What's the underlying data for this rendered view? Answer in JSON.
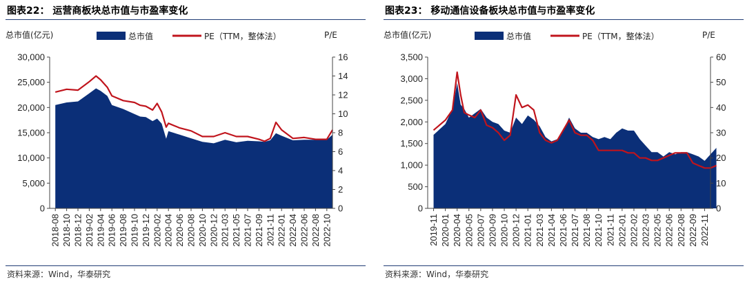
{
  "chart_data": [
    {
      "type": "area",
      "title": "图表22： 运营商板块总市值与市盈率变化",
      "source": "资料来源：Wind，华泰研究",
      "ylabel_left": "总市值(亿元)",
      "ylabel_right": "P/E",
      "ylim_left": [
        0,
        30000
      ],
      "yticks_left": [
        "0",
        "5,000",
        "10,000",
        "15,000",
        "20,000",
        "25,000",
        "30,000"
      ],
      "ylim_right": [
        0,
        16
      ],
      "yticks_right": [
        "0",
        "2",
        "4",
        "6",
        "8",
        "10",
        "12",
        "14",
        "16"
      ],
      "x_labels": [
        "2018-08",
        "2018-10",
        "2018-12",
        "2019-02",
        "2019-04",
        "2019-06",
        "2019-08",
        "2019-10",
        "2019-12",
        "2020-02",
        "2020-04",
        "2020-06",
        "2020-08",
        "2020-10",
        "2020-12",
        "2021-03",
        "2021-05",
        "2021-07",
        "2021-09",
        "2021-11",
        "2022-01",
        "2022-04",
        "2022-06",
        "2022-08",
        "2022-10"
      ],
      "legend": {
        "bar": "总市值",
        "line": "PE（TTM，整体法）"
      },
      "colors": {
        "area": "#0b2f78",
        "line": "#c0141c"
      },
      "series": [
        {
          "name": "总市值",
          "kind": "area",
          "axis": "left",
          "x": [
            0,
            1,
            2,
            3,
            3.6,
            4,
            4.6,
            5,
            6,
            7,
            7.5,
            8,
            8.6,
            9,
            9.4,
            9.8,
            10,
            11,
            12,
            13,
            14,
            15,
            16,
            17,
            18,
            18.5,
            19,
            19.5,
            20,
            21,
            22,
            23,
            24,
            24.5
          ],
          "values": [
            20500,
            21000,
            21200,
            22800,
            23800,
            23300,
            22300,
            20500,
            19700,
            18700,
            18200,
            18100,
            17300,
            17800,
            16800,
            13800,
            15300,
            14600,
            13900,
            13200,
            12900,
            13600,
            13100,
            13400,
            13300,
            13200,
            13500,
            14900,
            14400,
            13500,
            13600,
            13600,
            13600,
            14600
          ]
        },
        {
          "name": "PE（TTM，整体法）",
          "kind": "line",
          "axis": "right",
          "x": [
            0,
            1,
            2,
            3,
            3.6,
            4,
            4.6,
            5,
            6,
            7,
            7.5,
            8,
            8.6,
            9,
            9.4,
            9.8,
            10,
            11,
            12,
            13,
            14,
            15,
            16,
            17,
            18,
            18.5,
            19,
            19.5,
            20,
            21,
            22,
            23,
            24,
            24.5
          ],
          "values": [
            12.3,
            12.6,
            12.5,
            13.4,
            14.0,
            13.6,
            12.8,
            11.9,
            11.4,
            11.2,
            10.9,
            10.8,
            10.4,
            11.1,
            10.2,
            8.6,
            9.0,
            8.5,
            8.2,
            7.6,
            7.6,
            8.0,
            7.6,
            7.6,
            7.3,
            7.1,
            7.4,
            9.1,
            8.3,
            7.4,
            7.5,
            7.3,
            7.3,
            8.3
          ]
        }
      ]
    },
    {
      "type": "area",
      "title": "图表23： 移动通信设备板块总市值与市盈率变化",
      "source": "资料来源：Wind，华泰研究",
      "ylabel_left": "总市值(亿元)",
      "ylabel_right": "P/E",
      "ylim_left": [
        0,
        3500
      ],
      "yticks_left": [
        "0",
        "500",
        "1,000",
        "1,500",
        "2,000",
        "2,500",
        "3,000",
        "3,500"
      ],
      "ylim_right": [
        0,
        60
      ],
      "yticks_right": [
        "0",
        "10",
        "20",
        "30",
        "40",
        "50",
        "60"
      ],
      "x_labels": [
        "2019-11",
        "2020-01",
        "2020-04",
        "2020-05",
        "2020-07",
        "2020-09",
        "2020-10",
        "2020-12",
        "2021-01",
        "2021-03",
        "2021-04",
        "2021-06",
        "2021-07",
        "2021-08",
        "2021-10",
        "2021-11",
        "2022-01",
        "2022-02",
        "2022-03",
        "2022-05",
        "2022-06",
        "2022-08",
        "2022-09",
        "2022-11"
      ],
      "legend": {
        "bar": "总市值",
        "line": "PE（TTM，整体法）"
      },
      "colors": {
        "area": "#0b2f78",
        "line": "#c0141c"
      },
      "series": [
        {
          "name": "总市值",
          "kind": "area",
          "axis": "left",
          "x": [
            0,
            1,
            1.6,
            2,
            2.3,
            2.6,
            3,
            3.5,
            4,
            4.5,
            5,
            5.5,
            6,
            6.5,
            7,
            7.5,
            8,
            8.5,
            9,
            9.5,
            10,
            10.5,
            11,
            11.5,
            12,
            12.5,
            13,
            13.5,
            14,
            14.5,
            15,
            15.5,
            16,
            16.5,
            17,
            17.5,
            18,
            18.5,
            19,
            19.5,
            20,
            20.5,
            21,
            21.5,
            22,
            22.5,
            23,
            23.5,
            24
          ],
          "values": [
            1700,
            1950,
            2300,
            2900,
            2400,
            2300,
            2100,
            2200,
            2300,
            2100,
            2000,
            1950,
            1800,
            1750,
            2100,
            1950,
            2150,
            2050,
            1900,
            1650,
            1550,
            1600,
            1800,
            2100,
            1850,
            1750,
            1750,
            1650,
            1600,
            1650,
            1600,
            1750,
            1850,
            1800,
            1800,
            1600,
            1450,
            1300,
            1300,
            1200,
            1300,
            1250,
            1300,
            1300,
            1250,
            1200,
            1100,
            1250,
            1400
          ]
        },
        {
          "name": "PE（TTM，整体法）",
          "kind": "line",
          "axis": "right",
          "x": [
            0,
            1,
            1.6,
            2,
            2.3,
            2.6,
            3,
            3.5,
            4,
            4.5,
            5,
            5.5,
            6,
            6.5,
            7,
            7.5,
            8,
            8.5,
            9,
            9.5,
            10,
            10.5,
            11,
            11.5,
            12,
            12.5,
            13,
            13.5,
            14,
            14.5,
            15,
            15.5,
            16,
            16.5,
            17,
            17.5,
            18,
            18.5,
            19,
            19.5,
            20,
            20.5,
            21,
            21.5,
            22,
            22.5,
            23,
            23.5,
            24
          ],
          "values": [
            31,
            35,
            39,
            54,
            45,
            38,
            37,
            36,
            39,
            33,
            32,
            30,
            27,
            29,
            45,
            40,
            41,
            39,
            30,
            27,
            26,
            27,
            31,
            35,
            30,
            29,
            29,
            27,
            23,
            23,
            23,
            23,
            23,
            22,
            22,
            20,
            20,
            19,
            19,
            20,
            21,
            22,
            22,
            22,
            18,
            17,
            16,
            16,
            17
          ]
        }
      ]
    }
  ]
}
